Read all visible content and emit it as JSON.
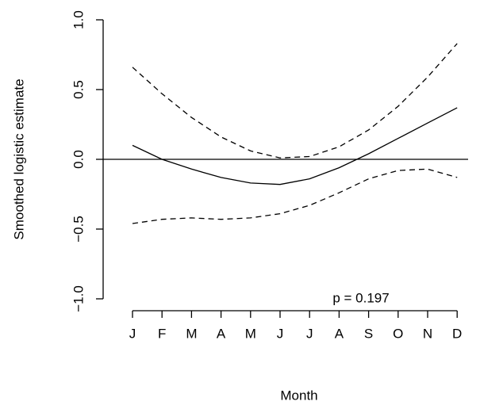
{
  "chart_data": {
    "type": "line",
    "xlabel": "Month",
    "ylabel": "Smoothed logistic estimate",
    "annotation": "p =  0.197",
    "categories": [
      "J",
      "F",
      "M",
      "A",
      "M",
      "J",
      "J",
      "A",
      "S",
      "O",
      "N",
      "D"
    ],
    "series": [
      {
        "name": "estimate",
        "color": "#000000",
        "dash": false,
        "values": [
          0.1,
          0.0,
          -0.07,
          -0.13,
          -0.17,
          -0.18,
          -0.14,
          -0.06,
          0.04,
          0.15,
          0.26,
          0.37
        ]
      },
      {
        "name": "upper",
        "color": "#000000",
        "dash": true,
        "values": [
          0.66,
          0.47,
          0.3,
          0.16,
          0.06,
          0.01,
          0.02,
          0.09,
          0.21,
          0.38,
          0.59,
          0.83
        ]
      },
      {
        "name": "lower",
        "color": "#000000",
        "dash": true,
        "values": [
          -0.46,
          -0.43,
          -0.42,
          -0.43,
          -0.42,
          -0.39,
          -0.33,
          -0.24,
          -0.14,
          -0.08,
          -0.07,
          -0.13
        ]
      }
    ],
    "hline": 0,
    "ylim": [
      -1.0,
      1.0
    ],
    "yticks": [
      {
        "value": -1.0,
        "label": "−1.0"
      },
      {
        "value": -0.5,
        "label": "−0.5"
      },
      {
        "value": 0.0,
        "label": "0.0"
      },
      0.5,
      {
        "value": 1.0,
        "label": "1.0"
      }
    ]
  }
}
